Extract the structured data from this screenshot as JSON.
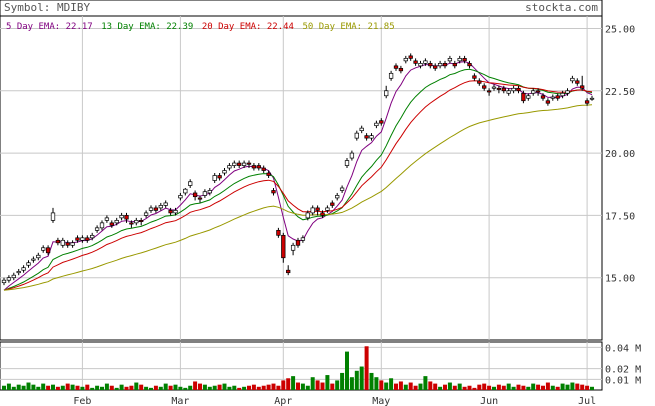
{
  "header": {
    "symbol_label": "Symbol: MDIBY",
    "site": "stockta.com"
  },
  "legend": [
    {
      "label": "5 Day EMA: 22.17",
      "color": "#800080"
    },
    {
      "label": "13 Day EMA: 22.39",
      "color": "#008000"
    },
    {
      "label": "20 Day EMA: 22.44",
      "color": "#cc0000"
    },
    {
      "label": "50 Day EMA: 21.85",
      "color": "#999900"
    }
  ],
  "chart_data": {
    "type": "candlestick",
    "title": "Symbol: MDIBY",
    "price_axis": {
      "min": 12.5,
      "max": 25.5,
      "ticks": [
        "25.00",
        "22.50",
        "20.00",
        "17.50",
        "15.00"
      ]
    },
    "volume_axis": {
      "min": 0,
      "max": 0.045,
      "ticks": [
        "0.04 M",
        "0.02 M",
        "0.01 M"
      ]
    },
    "months": [
      {
        "label": "Feb",
        "index": 16
      },
      {
        "label": "Mar",
        "index": 36
      },
      {
        "label": "Apr",
        "index": 57
      },
      {
        "label": "May",
        "index": 77
      },
      {
        "label": "Jun",
        "index": 99
      },
      {
        "label": "Jul",
        "index": 119
      }
    ],
    "close": [
      14.9,
      15.0,
      15.1,
      15.25,
      15.4,
      15.6,
      15.75,
      15.9,
      16.2,
      16.0,
      17.6,
      16.4,
      16.5,
      16.3,
      16.4,
      16.5,
      16.6,
      16.5,
      16.7,
      17.0,
      17.2,
      17.4,
      17.1,
      17.3,
      17.5,
      17.35,
      17.15,
      17.3,
      17.25,
      17.6,
      17.8,
      17.7,
      17.9,
      18.0,
      17.6,
      17.7,
      18.3,
      18.55,
      18.85,
      18.25,
      18.15,
      18.45,
      18.5,
      19.1,
      19.0,
      19.3,
      19.5,
      19.6,
      19.5,
      19.6,
      19.55,
      19.4,
      19.4,
      19.3,
      19.1,
      18.4,
      16.7,
      15.8,
      15.2,
      16.3,
      16.3,
      16.6,
      17.6,
      17.8,
      17.7,
      17.5,
      17.8,
      17.9,
      18.3,
      18.6,
      19.7,
      20.0,
      20.8,
      21.0,
      20.6,
      20.7,
      21.2,
      21.2,
      22.5,
      23.2,
      23.4,
      23.3,
      23.8,
      23.8,
      23.6,
      23.6,
      23.7,
      23.5,
      23.4,
      23.6,
      23.5,
      23.8,
      23.5,
      23.8,
      23.7,
      23.5,
      23.0,
      22.8,
      22.6,
      22.45,
      22.65,
      22.55,
      22.5,
      22.5,
      22.6,
      22.5,
      22.1,
      22.3,
      22.5,
      22.45,
      22.2,
      22.0,
      22.25,
      22.2,
      22.4,
      22.5,
      23.0,
      22.8,
      22.6,
      22.0,
      22.2
    ],
    "open": [
      14.8,
      14.9,
      15.0,
      15.2,
      15.3,
      15.5,
      15.7,
      15.8,
      16.1,
      16.2,
      17.3,
      16.5,
      16.3,
      16.4,
      16.3,
      16.6,
      16.5,
      16.6,
      16.6,
      16.9,
      17.0,
      17.3,
      17.2,
      17.2,
      17.4,
      17.5,
      17.2,
      17.2,
      17.3,
      17.5,
      17.7,
      17.8,
      17.8,
      17.9,
      17.7,
      17.6,
      18.2,
      18.4,
      18.7,
      18.4,
      18.2,
      18.3,
      18.4,
      18.9,
      19.1,
      19.2,
      19.4,
      19.5,
      19.6,
      19.5,
      19.6,
      19.5,
      19.5,
      19.4,
      19.2,
      18.5,
      16.9,
      16.7,
      15.3,
      16.1,
      16.5,
      16.5,
      17.4,
      17.6,
      17.8,
      17.6,
      17.7,
      18.0,
      18.2,
      18.5,
      19.5,
      19.8,
      20.6,
      20.9,
      20.7,
      20.6,
      21.1,
      21.3,
      22.3,
      23.0,
      23.5,
      23.4,
      23.7,
      23.9,
      23.7,
      23.5,
      23.6,
      23.6,
      23.5,
      23.5,
      23.6,
      23.7,
      23.6,
      23.7,
      23.8,
      23.6,
      23.1,
      22.9,
      22.7,
      22.5,
      22.6,
      22.6,
      22.6,
      22.4,
      22.5,
      22.6,
      22.4,
      22.2,
      22.4,
      22.5,
      22.3,
      22.1,
      22.2,
      22.3,
      22.3,
      22.4,
      22.9,
      22.9,
      22.7,
      22.1,
      22.2
    ],
    "high": [
      15.0,
      15.1,
      15.2,
      15.35,
      15.5,
      15.7,
      15.85,
      16.0,
      16.3,
      16.3,
      17.8,
      16.6,
      16.6,
      16.5,
      16.5,
      16.7,
      16.7,
      16.7,
      16.8,
      17.1,
      17.3,
      17.5,
      17.3,
      17.4,
      17.6,
      17.6,
      17.3,
      17.4,
      17.4,
      17.7,
      17.9,
      17.9,
      18.0,
      18.1,
      17.8,
      17.8,
      18.4,
      18.6,
      18.95,
      18.5,
      18.3,
      18.55,
      18.6,
      19.2,
      19.2,
      19.4,
      19.6,
      19.7,
      19.7,
      19.7,
      19.7,
      19.6,
      19.6,
      19.5,
      19.3,
      18.6,
      17.0,
      16.8,
      15.5,
      16.4,
      16.6,
      16.7,
      17.7,
      17.9,
      17.9,
      17.7,
      17.9,
      18.1,
      18.4,
      18.7,
      19.8,
      20.1,
      20.9,
      21.1,
      20.8,
      20.8,
      21.3,
      21.4,
      22.7,
      23.3,
      23.6,
      23.5,
      23.9,
      24.0,
      23.8,
      23.7,
      23.8,
      23.7,
      23.6,
      23.7,
      23.7,
      23.9,
      23.7,
      23.9,
      23.9,
      23.7,
      23.2,
      23.0,
      22.8,
      22.6,
      22.75,
      22.7,
      22.7,
      22.6,
      22.7,
      22.7,
      22.5,
      22.4,
      22.6,
      22.6,
      22.4,
      22.2,
      22.35,
      22.4,
      22.5,
      22.6,
      23.1,
      23.0,
      23.1,
      22.2,
      22.3
    ],
    "low": [
      14.7,
      14.8,
      14.9,
      15.1,
      15.2,
      15.4,
      15.6,
      15.7,
      16.0,
      15.9,
      17.2,
      16.3,
      16.2,
      16.2,
      16.2,
      16.4,
      16.4,
      16.4,
      16.5,
      16.8,
      16.9,
      17.2,
      17.0,
      17.1,
      17.3,
      17.2,
      17.0,
      17.1,
      17.1,
      17.4,
      17.6,
      17.6,
      17.7,
      17.8,
      17.5,
      17.5,
      18.1,
      18.3,
      18.6,
      18.1,
      18.0,
      18.2,
      18.3,
      18.8,
      18.9,
      19.1,
      19.3,
      19.4,
      19.4,
      19.4,
      19.4,
      19.3,
      19.3,
      19.2,
      19.0,
      18.3,
      16.6,
      15.6,
      15.1,
      15.9,
      16.2,
      16.4,
      17.3,
      17.5,
      17.5,
      17.4,
      17.6,
      17.8,
      18.1,
      18.4,
      19.4,
      19.7,
      20.5,
      20.8,
      20.5,
      20.5,
      21.0,
      21.1,
      22.2,
      22.9,
      23.3,
      23.2,
      23.6,
      23.7,
      23.5,
      23.4,
      23.5,
      23.4,
      23.3,
      23.4,
      23.4,
      23.6,
      23.4,
      23.6,
      23.6,
      23.4,
      22.9,
      22.7,
      22.5,
      22.3,
      22.5,
      22.4,
      22.4,
      22.3,
      22.4,
      22.4,
      22.0,
      22.1,
      22.3,
      22.3,
      22.1,
      21.9,
      22.1,
      22.1,
      22.2,
      22.3,
      22.8,
      22.7,
      22.5,
      21.9,
      22.1
    ],
    "volume": [
      0.004,
      0.006,
      0.003,
      0.005,
      0.004,
      0.007,
      0.005,
      0.003,
      0.006,
      0.004,
      0.005,
      0.003,
      0.004,
      0.006,
      0.005,
      0.004,
      0.003,
      0.005,
      0.002,
      0.004,
      0.003,
      0.006,
      0.004,
      0.002,
      0.005,
      0.003,
      0.004,
      0.007,
      0.005,
      0.003,
      0.002,
      0.004,
      0.003,
      0.006,
      0.004,
      0.005,
      0.003,
      0.002,
      0.004,
      0.008,
      0.006,
      0.005,
      0.003,
      0.004,
      0.005,
      0.006,
      0.003,
      0.004,
      0.002,
      0.003,
      0.004,
      0.005,
      0.003,
      0.004,
      0.005,
      0.006,
      0.004,
      0.009,
      0.011,
      0.013,
      0.007,
      0.006,
      0.004,
      0.012,
      0.009,
      0.007,
      0.014,
      0.006,
      0.009,
      0.016,
      0.036,
      0.012,
      0.018,
      0.022,
      0.041,
      0.016,
      0.012,
      0.009,
      0.007,
      0.011,
      0.006,
      0.008,
      0.005,
      0.007,
      0.004,
      0.006,
      0.013,
      0.008,
      0.006,
      0.003,
      0.005,
      0.007,
      0.004,
      0.006,
      0.003,
      0.004,
      0.002,
      0.005,
      0.006,
      0.004,
      0.003,
      0.005,
      0.004,
      0.006,
      0.003,
      0.005,
      0.004,
      0.003,
      0.006,
      0.005,
      0.004,
      0.007,
      0.004,
      0.003,
      0.006,
      0.005,
      0.007,
      0.006,
      0.005,
      0.004,
      0.003
    ],
    "ema_labels": [
      "5 Day EMA",
      "13 Day EMA",
      "20 Day EMA",
      "50 Day EMA"
    ],
    "ema_periods": [
      5,
      13,
      20,
      50
    ],
    "colors": {
      "up": "#ffffff",
      "down": "#cc0000",
      "vol_up": "#008000",
      "vol_down": "#cc0000",
      "grid": "#c8c8c8"
    },
    "grid": true
  }
}
